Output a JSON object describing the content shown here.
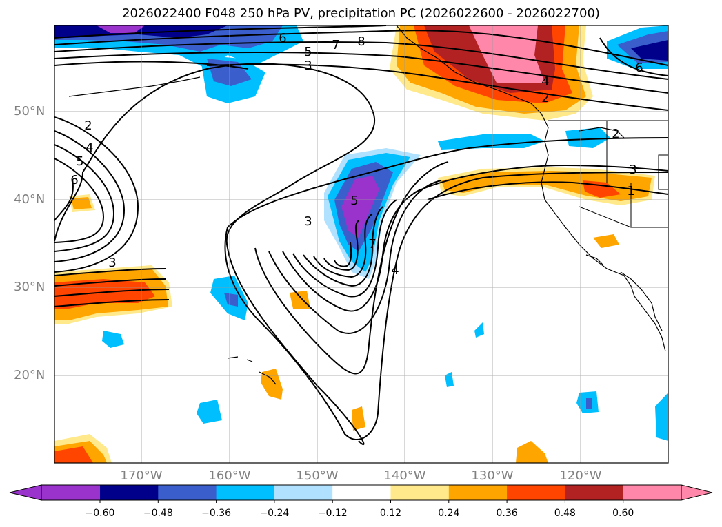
{
  "title": "2026022400 F048 250 hPa PV, precipitation PC (2026022600 - 2026022700)",
  "lat_labels": [
    "50°N",
    "40°N",
    "30°N",
    "20°N"
  ],
  "lon_labels": [
    "170°W",
    "160°W",
    "150°W",
    "140°W",
    "130°W",
    "120°W"
  ],
  "colorbar": {
    "ticks": [
      "−0.60",
      "−0.48",
      "−0.36",
      "−0.24",
      "−0.12",
      "0.12",
      "0.24",
      "0.36",
      "0.48",
      "0.60"
    ],
    "colors": [
      "#9933cc",
      "#00008b",
      "#3a5fcd",
      "#00bfff",
      "#b0e2ff",
      "#ffffff",
      "#ffe98a",
      "#ffa500",
      "#ff4500",
      "#b22222",
      "#ff88aa",
      "#ff88aa"
    ]
  },
  "contour_labels": {
    "l8": "8",
    "l7a": "7",
    "l5a": "5",
    "l3a": "3",
    "l6a": "6",
    "l4a": "4",
    "l2a": "2",
    "l2b": "2",
    "l4b": "4",
    "l5b": "5",
    "l6b": "6",
    "l3b": "3",
    "l3c": "3",
    "l5c": "5",
    "l7b": "7",
    "l4c": "4",
    "l2c": "2",
    "l3d": "3",
    "l1": "1",
    "l6c": "6"
  }
}
